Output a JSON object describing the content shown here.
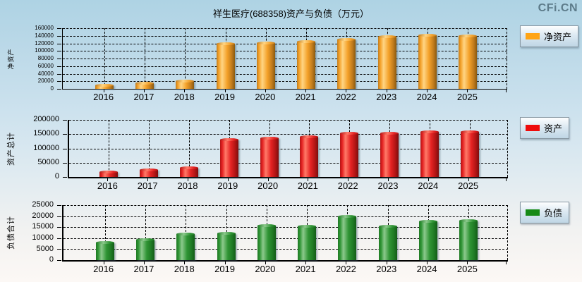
{
  "page": {
    "title": "祥生医疗(688358)资产与负债（万元）",
    "watermark": "CFi.CN"
  },
  "chart_data": [
    {
      "type": "bar",
      "ylabel": "净资产",
      "legend": "净资产",
      "categories": [
        "2016",
        "2017",
        "2018",
        "2019",
        "2020",
        "2021",
        "2022",
        "2023",
        "2024",
        "2025"
      ],
      "values": [
        8600,
        14000,
        21000,
        119000,
        121000,
        125000,
        131000,
        137000,
        142000,
        140000
      ],
      "ylim": [
        0,
        160000
      ],
      "ytick_step": 20000,
      "grid": true,
      "legend_position": "right",
      "colors": {
        "swatch": "#ffa414",
        "main": "#f4a129",
        "light": "#ffd584",
        "dark": "#c27c1d",
        "edge": "#8a5a10"
      }
    },
    {
      "type": "bar",
      "ylabel": "资产总计",
      "legend": "资产",
      "categories": [
        "2016",
        "2017",
        "2018",
        "2019",
        "2020",
        "2021",
        "2022",
        "2023",
        "2024",
        "2025"
      ],
      "values": [
        17000,
        24000,
        33000,
        131000,
        137000,
        141000,
        152000,
        152000,
        159000,
        157000
      ],
      "ylim": [
        0,
        200000
      ],
      "ytick_step": 50000,
      "grid": true,
      "legend_position": "right",
      "colors": {
        "swatch": "#ee0c0c",
        "main": "#e52323",
        "light": "#ff7a68",
        "dark": "#b31515",
        "edge": "#7c0e0e"
      }
    },
    {
      "type": "bar",
      "ylabel": "负债合计",
      "legend": "负债",
      "categories": [
        "2016",
        "2017",
        "2018",
        "2019",
        "2020",
        "2021",
        "2022",
        "2023",
        "2024",
        "2025"
      ],
      "values": [
        7900,
        9400,
        11700,
        12300,
        15700,
        15400,
        19900,
        15400,
        17700,
        17800
      ],
      "ylim": [
        0,
        25000
      ],
      "ytick_step": 5000,
      "grid": true,
      "legend_position": "right",
      "colors": {
        "swatch": "#178a17",
        "main": "#2f9434",
        "light": "#8cc98c",
        "dark": "#1f7a24",
        "edge": "#135c17"
      }
    }
  ]
}
